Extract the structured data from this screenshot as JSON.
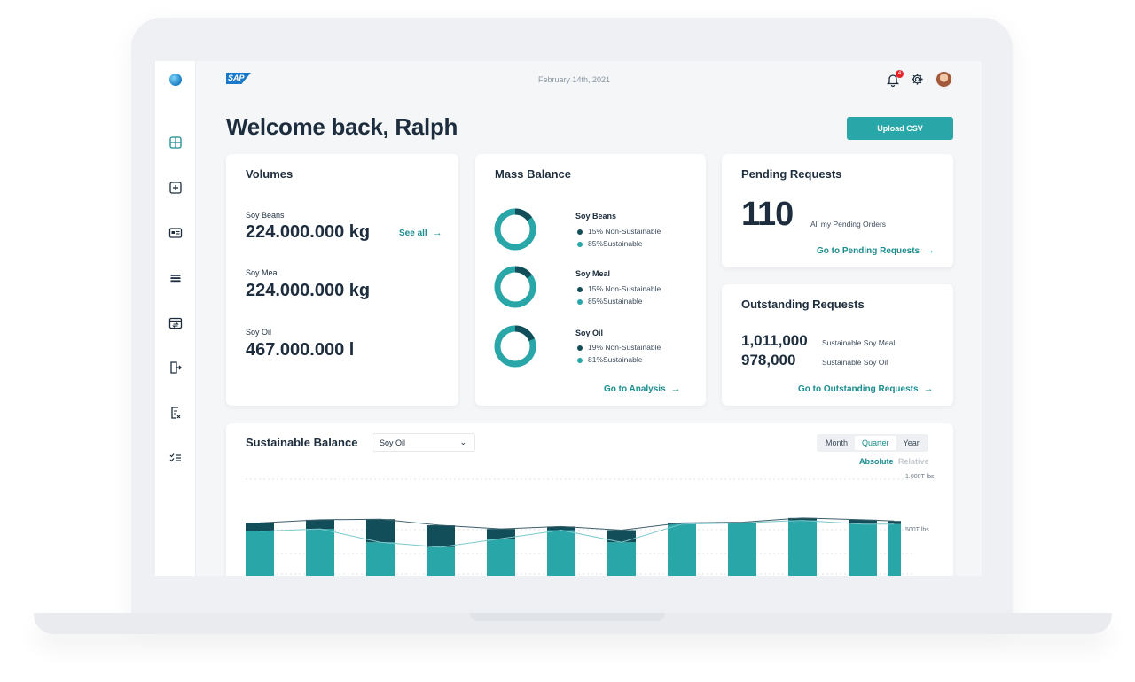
{
  "header": {
    "date": "February 14th, 2021",
    "notification_count": "4",
    "brand": "SAP"
  },
  "page": {
    "welcome": "Welcome back, Ralph",
    "upload_label": "Upload CSV"
  },
  "volumes": {
    "title": "Volumes",
    "see_all": "See all",
    "items": [
      {
        "name": "Soy Beans",
        "value": "224.000.000 kg"
      },
      {
        "name": "Soy Meal",
        "value": "224.000.000 kg"
      },
      {
        "name": "Soy Oil",
        "value": "467.000.000 l"
      }
    ]
  },
  "mass_balance": {
    "title": "Mass Balance",
    "link": "Go to Analysis",
    "items": [
      {
        "name": "Soy Beans",
        "non_sustainable": "15% Non-Sustainable",
        "sustainable": "85%Sustainable",
        "non_sustainable_fraction": 0.15
      },
      {
        "name": "Soy Meal",
        "non_sustainable": "15% Non-Sustainable",
        "sustainable": "85%Sustainable",
        "non_sustainable_fraction": 0.15
      },
      {
        "name": "Soy Oil",
        "non_sustainable": "19% Non-Sustainable",
        "sustainable": "81%Sustainable",
        "non_sustainable_fraction": 0.19
      }
    ]
  },
  "pending": {
    "title": "Pending Requests",
    "count": "110",
    "note": "All my Pending Orders",
    "link": "Go to Pending Requests"
  },
  "outstanding": {
    "title": "Outstanding Requests",
    "rows": [
      {
        "value": "1,011,000",
        "label": "Sustainable Soy Meal"
      },
      {
        "value": "978,000",
        "label": "Sustainable Soy Oil"
      }
    ],
    "link": "Go to Outstanding Requests"
  },
  "balance": {
    "title": "Sustainable Balance",
    "product": "Soy Oil",
    "periods": [
      "Month",
      "Quarter",
      "Year"
    ],
    "active_period": "Quarter",
    "mode_absolute": "Absolute",
    "mode_relative": "Relative"
  },
  "colors": {
    "teal": "#28a6a8",
    "dark_teal": "#124e59",
    "text": "#1d2d3e"
  },
  "chart_data": {
    "type": "bar",
    "y_tick_labels": [
      "1.000T lbs",
      "500T lbs"
    ],
    "ylim": [
      0,
      1000
    ],
    "series": [
      {
        "values": [
          570,
          590,
          480,
          440,
          510,
          580,
          480,
          630,
          640,
          660,
          630,
          630
        ]
      },
      {
        "values": [
          70,
          75,
          190,
          180,
          80,
          30,
          100,
          10,
          5,
          20,
          35,
          25
        ]
      }
    ]
  }
}
